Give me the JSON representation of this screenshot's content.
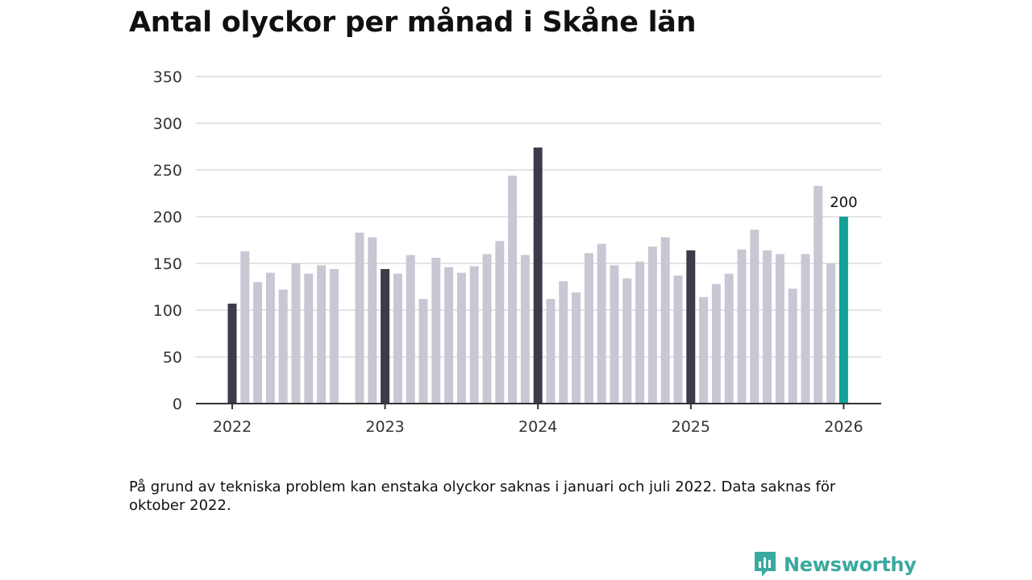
{
  "chart_data": {
    "type": "bar",
    "title": "Antal olyckor per månad i Skåne län",
    "xlabel": "",
    "ylabel": "",
    "ylim": [
      0,
      350
    ],
    "yticks": [
      0,
      50,
      100,
      150,
      200,
      250,
      300,
      350
    ],
    "xticks": [
      "2022",
      "2023",
      "2024",
      "2025",
      "2026"
    ],
    "grid": true,
    "legend": "none",
    "start": "2022-01",
    "values": [
      107,
      163,
      130,
      140,
      122,
      150,
      139,
      148,
      144,
      null,
      183,
      178,
      144,
      139,
      159,
      112,
      156,
      146,
      140,
      147,
      160,
      174,
      244,
      159,
      274,
      112,
      131,
      119,
      161,
      171,
      148,
      134,
      152,
      168,
      178,
      137,
      164,
      114,
      128,
      139,
      165,
      186,
      164,
      160,
      123,
      160,
      233,
      150,
      200
    ],
    "annotations": [
      {
        "month": "2026-01",
        "text": "200"
      }
    ],
    "colors": {
      "regular": "#c8c8d4",
      "january": "#3b3b4a",
      "latest": "#14a197",
      "grid": "#dcdcdc",
      "axis": "#333333"
    }
  },
  "note": "På grund av tekniska problem kan enstaka olyckor saknas i januari och juli 2022. Data saknas för oktober 2022.",
  "brand": {
    "name": "Newsworthy",
    "icon": "newsworthy-logo-icon",
    "color": "#3aa99f"
  }
}
